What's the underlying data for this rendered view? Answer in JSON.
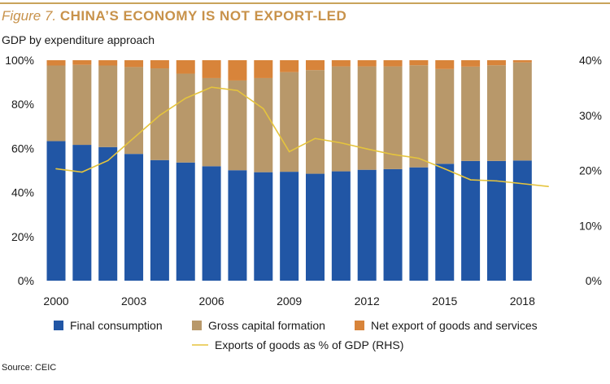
{
  "figure_label": "Figure 7.",
  "figure_title": "CHINA’S ECONOMY IS NOT EXPORT-LED",
  "subtitle": "GDP by expenditure approach",
  "source": "Source: CEIC",
  "colors": {
    "final_consumption": "#2156a5",
    "gross_capital_formation": "#b8986a",
    "net_export": "#d8843a",
    "exports_line": "#e5c43d",
    "title": "#c8924a"
  },
  "chart_data": {
    "type": "bar",
    "stacked": true,
    "categories": [
      "2000",
      "2001",
      "2002",
      "2003",
      "2004",
      "2005",
      "2006",
      "2007",
      "2008",
      "2009",
      "2010",
      "2011",
      "2012",
      "2013",
      "2014",
      "2015",
      "2016",
      "2017",
      "2018"
    ],
    "x_tick_labels": [
      "2000",
      "2003",
      "2006",
      "2009",
      "2012",
      "2015",
      "2018"
    ],
    "ylim": [
      0,
      100
    ],
    "y_tick_labels": [
      "0%",
      "20%",
      "40%",
      "60%",
      "80%",
      "100%"
    ],
    "y2lim": [
      0,
      40
    ],
    "y2_tick_labels": [
      "0%",
      "10%",
      "20%",
      "30%",
      "40%"
    ],
    "series": [
      {
        "name": "Final consumption",
        "values": [
          63.3,
          61.6,
          60.6,
          57.5,
          54.7,
          53.6,
          51.9,
          50.1,
          49.2,
          49.4,
          48.5,
          49.6,
          50.3,
          50.6,
          51.4,
          53.0,
          54.3,
          54.3,
          54.5
        ]
      },
      {
        "name": "Gross capital formation",
        "values": [
          34.3,
          36.3,
          37.0,
          39.4,
          41.6,
          40.3,
          40.0,
          40.7,
          42.7,
          45.2,
          47.0,
          47.6,
          46.9,
          46.6,
          46.3,
          43.0,
          42.8,
          43.4,
          44.5
        ]
      },
      {
        "name": "Net export of goods and services",
        "values": [
          2.4,
          2.1,
          2.4,
          3.1,
          3.7,
          6.1,
          8.1,
          9.2,
          8.1,
          5.4,
          4.5,
          2.8,
          2.8,
          2.8,
          2.3,
          4.0,
          2.9,
          2.3,
          1.0
        ]
      }
    ],
    "line": {
      "name": "Exports of goods as % of GDP (RHS)",
      "axis": "right",
      "x": [
        2000,
        2001,
        2002,
        2003,
        2004,
        2005,
        2006,
        2007,
        2008,
        2009,
        2010,
        2011,
        2012,
        2013,
        2014,
        2015,
        2016,
        2017,
        2018,
        2019
      ],
      "values": [
        20.3,
        19.7,
        21.8,
        25.9,
        30.0,
        33.1,
        35.1,
        34.5,
        31.2,
        23.4,
        25.8,
        25.0,
        23.9,
        22.9,
        22.2,
        20.3,
        18.3,
        18.1,
        17.6,
        17.1
      ]
    },
    "legend_position": "bottom"
  }
}
